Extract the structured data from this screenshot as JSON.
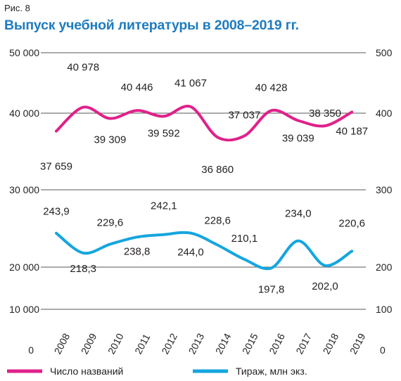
{
  "figure_label": "Рис. 8",
  "title": "Выпуск учебной литературы в 2008–2019 гг.",
  "colors": {
    "titles_series": "#e0218a",
    "circulation_series": "#15a6de",
    "title_text": "#1f7bbf",
    "grid": "#231f20"
  },
  "chart_data": {
    "type": "line",
    "title": "Выпуск учебной литературы в 2008–2019 гг.",
    "x": [
      "2008",
      "2009",
      "2010",
      "2011",
      "2012",
      "2013",
      "2014",
      "2015",
      "2016",
      "2017",
      "2018",
      "2019"
    ],
    "left_axis": {
      "ylim": [
        0,
        50000
      ],
      "ticks": [
        "0",
        "10 000",
        "20 000",
        "30 000",
        "40 000",
        "50 000"
      ],
      "tick_values": [
        0,
        10000,
        20000,
        30000,
        40000,
        50000
      ]
    },
    "right_axis": {
      "ylim": [
        0,
        500
      ],
      "ticks": [
        "0",
        "100",
        "200",
        "300",
        "400",
        "500"
      ],
      "tick_values": [
        0,
        100,
        200,
        300,
        400,
        500
      ]
    },
    "series": [
      {
        "name": "Число названий",
        "axis": "left",
        "values": [
          37659,
          40978,
          39309,
          40446,
          39592,
          41067,
          36860,
          37037,
          40428,
          39039,
          38350,
          40187
        ],
        "labels": [
          "37 659",
          "40 978",
          "39 309",
          "40 446",
          "39 592",
          "41 067",
          "36 860",
          "37 037",
          "40 428",
          "39 039",
          "38 350",
          "40 187"
        ]
      },
      {
        "name": "Тираж, млн экз.",
        "axis": "right",
        "values": [
          243.9,
          218.3,
          229.6,
          238.8,
          242.1,
          244.0,
          228.6,
          210.1,
          197.8,
          234.0,
          202.0,
          220.6
        ],
        "labels": [
          "243,9",
          "218,3",
          "229,6",
          "238,8",
          "242,1",
          "244,0",
          "228,6",
          "210,1",
          "197,8",
          "234,0",
          "202,0",
          "220,6"
        ]
      }
    ],
    "grid": true,
    "legend": "bottom"
  }
}
